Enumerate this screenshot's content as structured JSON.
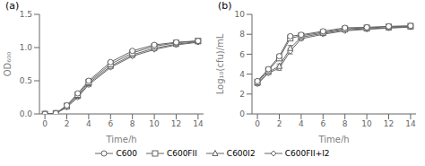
{
  "chart_data": [
    {
      "type": "line",
      "title": "(a)",
      "x_label": "Time/h",
      "y_label": "OD₆₀₀",
      "x": [
        0,
        1,
        2,
        3,
        4,
        6,
        8,
        10,
        12,
        14
      ],
      "xlim": [
        -0.5,
        14.5
      ],
      "xticks": [
        0,
        2,
        4,
        6,
        8,
        10,
        12,
        14
      ],
      "ylim": [
        0.0,
        1.5
      ],
      "yticks": [
        {
          "value": 0,
          "label": "0.0"
        },
        0.5,
        {
          "value": 1,
          "label": "1.0"
        },
        1.5
      ],
      "grid": false,
      "legend": "bottom",
      "series": [
        {
          "name": "C600",
          "color": "#666666",
          "marker": "circle",
          "line_style": "solid",
          "values": [
            0.0,
            0.01,
            0.13,
            0.31,
            0.5,
            0.78,
            0.95,
            1.04,
            1.08,
            1.1
          ],
          "errors": [
            0.0,
            0.003,
            0.008,
            0.018,
            0.025,
            0.018,
            0.015,
            0.015,
            0.01,
            0.008
          ]
        },
        {
          "name": "C600FII",
          "color": "#666666",
          "marker": "square",
          "line_style": "solid",
          "values": [
            0.0,
            0.01,
            0.12,
            0.29,
            0.48,
            0.75,
            0.92,
            1.02,
            1.07,
            1.1
          ],
          "errors": [
            0.0,
            0.003,
            0.008,
            0.018,
            0.025,
            0.018,
            0.015,
            0.015,
            0.01,
            0.008
          ]
        },
        {
          "name": "C600I2",
          "color": "#666666",
          "marker": "triangle",
          "line_style": "solid",
          "values": [
            0.0,
            0.01,
            0.11,
            0.27,
            0.46,
            0.72,
            0.89,
            0.99,
            1.05,
            1.09
          ],
          "errors": [
            0.0,
            0.003,
            0.008,
            0.018,
            0.03,
            0.018,
            0.015,
            0.015,
            0.01,
            0.008
          ]
        },
        {
          "name": "C600FII+I2",
          "color": "#666666",
          "marker": "diamond",
          "line_style": "solid",
          "values": [
            0.0,
            0.01,
            0.1,
            0.25,
            0.44,
            0.7,
            0.87,
            0.97,
            1.04,
            1.08
          ],
          "errors": [
            0.0,
            0.003,
            0.008,
            0.018,
            0.03,
            0.018,
            0.015,
            0.015,
            0.01,
            0.008
          ]
        }
      ]
    },
    {
      "type": "line",
      "title": "(b)",
      "x_label": "Time/h",
      "y_label": "Log₁₀(cfu)/mL",
      "x": [
        0,
        1,
        2,
        3,
        4,
        6,
        8,
        10,
        12,
        14
      ],
      "xlim": [
        -0.5,
        14.5
      ],
      "xticks": [
        0,
        2,
        4,
        6,
        8,
        10,
        12,
        14
      ],
      "ylim": [
        0,
        10
      ],
      "yticks": [
        0,
        2,
        4,
        6,
        8,
        10
      ],
      "grid": false,
      "series": [
        {
          "name": "C600",
          "color": "#666666",
          "marker": "circle",
          "line_style": "solid",
          "values": [
            3.3,
            4.5,
            5.8,
            7.8,
            7.95,
            8.3,
            8.65,
            8.7,
            8.8,
            8.85
          ],
          "errors": [
            0.12,
            0.15,
            0.2,
            0.18,
            0.15,
            0.12,
            0.1,
            0.1,
            0.08,
            0.08
          ]
        },
        {
          "name": "C600FII",
          "color": "#666666",
          "marker": "square",
          "line_style": "solid",
          "values": [
            3.2,
            4.4,
            5.6,
            7.6,
            7.85,
            8.2,
            8.55,
            8.65,
            8.75,
            8.82
          ],
          "errors": [
            0.12,
            0.15,
            0.2,
            0.22,
            0.15,
            0.12,
            0.1,
            0.1,
            0.08,
            0.08
          ]
        },
        {
          "name": "C600I2",
          "color": "#666666",
          "marker": "triangle",
          "line_style": "solid",
          "values": [
            3.1,
            4.2,
            4.8,
            6.6,
            7.7,
            8.1,
            8.45,
            8.55,
            8.65,
            8.75
          ],
          "errors": [
            0.12,
            0.15,
            0.22,
            0.28,
            0.15,
            0.12,
            0.1,
            0.1,
            0.08,
            0.08
          ]
        },
        {
          "name": "C600FII+I2",
          "color": "#666666",
          "marker": "diamond",
          "line_style": "solid",
          "values": [
            3.0,
            4.1,
            4.6,
            6.3,
            7.55,
            8.0,
            8.35,
            8.5,
            8.62,
            8.72
          ],
          "errors": [
            0.12,
            0.15,
            0.22,
            0.28,
            0.15,
            0.12,
            0.1,
            0.1,
            0.08,
            0.08
          ]
        }
      ]
    }
  ]
}
